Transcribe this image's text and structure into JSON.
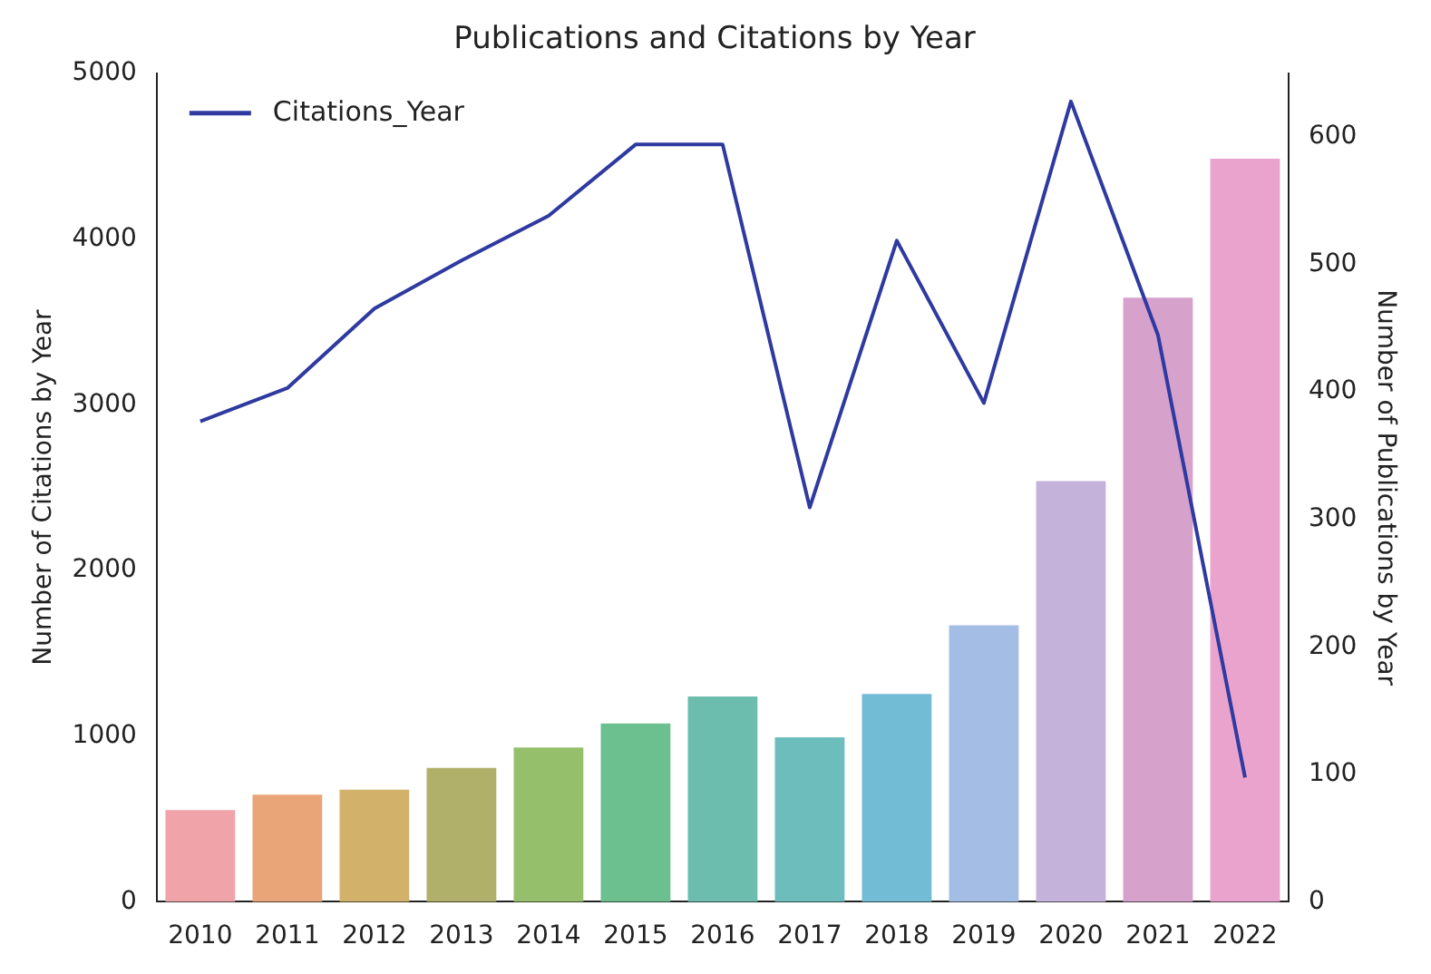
{
  "chart_data": {
    "type": "bar",
    "title": "Publications and Citations by Year",
    "ylabel": "Number of Citations by Year",
    "y2label": "Number of Publications by Year",
    "categories": [
      "2010",
      "2011",
      "2012",
      "2013",
      "2014",
      "2015",
      "2016",
      "2017",
      "2018",
      "2019",
      "2020",
      "2021",
      "2022"
    ],
    "series": [
      {
        "axis": "y2",
        "colors": [
          "#f0a3a8",
          "#e9a578",
          "#d2b26a",
          "#b0b06a",
          "#96bf6b",
          "#6cc08f",
          "#6cbdad",
          "#6dbdbd",
          "#72bcd6",
          "#a4bde4",
          "#c4b2da",
          "#d6a1cb",
          "#e9a3cc"
        ],
        "values": [
          72,
          84,
          88,
          105,
          121,
          140,
          161,
          129,
          163,
          217,
          330,
          474,
          583
        ]
      },
      {
        "type": "line",
        "name": "Citations_Year",
        "color": "#2e3aa0",
        "values": [
          2900,
          3100,
          3580,
          3870,
          4140,
          4570,
          4570,
          2380,
          3990,
          3010,
          4830,
          3420,
          750
        ]
      }
    ],
    "ylim": [
      0,
      5000
    ],
    "yticks": [
      0,
      1000,
      2000,
      3000,
      4000,
      5000
    ],
    "y2lim": [
      0,
      650
    ],
    "y2ticks": [
      0,
      100,
      200,
      300,
      400,
      500,
      600
    ],
    "legend": "top left",
    "grid": false
  }
}
